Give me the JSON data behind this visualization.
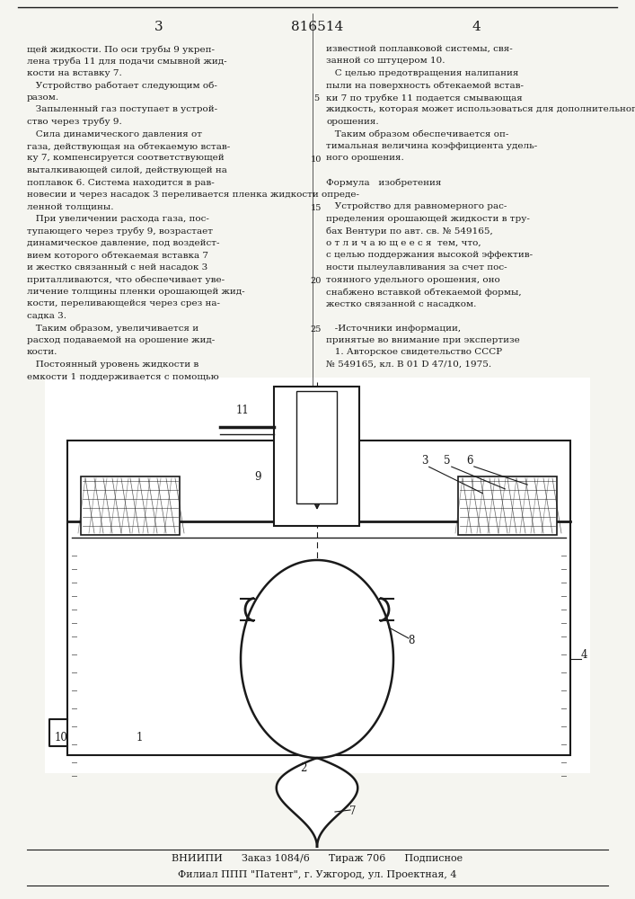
{
  "page_number_left": "3",
  "patent_number": "816514",
  "page_number_right": "4",
  "bg_color": "#f5f5f0",
  "text_color": "#1a1a1a",
  "left_column_text": [
    "щей жидкости. По оси трубы 9 укреп-",
    "лена труба 11 для подачи смывной жид-",
    "кости на вставку 7.",
    "   Устройство работает следующим об-",
    "разом.",
    "   Запыленный газ поступает в устрой-",
    "ство через трубу 9.",
    "   Сила динамического давления от",
    "газа, действующая на обтекаемую встав-",
    "ку 7, компенсируется соответствующей",
    "выталкивающей силой, действующей на",
    "поплавок 6. Система находится в рав-",
    "новесии и через насадок 3 переливается пленка жидкости опреде-",
    "ленной толщины.",
    "   При увеличении расхода газа, пос-",
    "тупающего через трубу 9, возрастает",
    "динамическое давление, под воздейст-",
    "вием которого обтекаемая вставка 7",
    "и жестко связанный с ней насадок 3",
    "приталливаются, что обеспечивает уве-",
    "личение толщины пленки орошающей жид-",
    "кости, переливающейся через срез на-",
    "садка 3.",
    "   Таким образом, увеличивается и",
    "расход подаваемой на орошение жид-",
    "кости.",
    "   Постоянный уровень жидкости в",
    "емкости 1 поддерживается с помощью"
  ],
  "right_column_text": [
    "известной поплавковой системы, свя-",
    "занной со штуцером 10.",
    "   С целью предотвращения налипания",
    "пыли на поверхность обтекаемой встав-",
    "ки 7 по трубке 11 подается смывающая",
    "жидкость, которая может использоваться для дополнительного центрального",
    "орошения.",
    "   Таким образом обеспечивается оп-",
    "тимальная величина коэффициента удель-",
    "ного орошения.",
    "",
    "Формула   изобретения",
    "",
    "   Устройство для равномерного рас-",
    "пределения орошающей жидкости в тру-",
    "бах Вентури по авт. св. № 549165,",
    "о т л и ч а ю щ е е с я  тем, что,",
    "с целью поддержания высокой эффектив-",
    "ности пылеулавливания за счет пос-",
    "тоянного удельного орошения, оно",
    "снабжено вставкой обтекаемой формы,",
    "жестко связанной с насадком.",
    "",
    "   -Источники информации,",
    "принятые во внимание при экспертизе",
    "   1. Авторское свидетельство СССР",
    "№ 549165, кл. В 01 D 47/10, 1975."
  ],
  "line_numbers": [
    5,
    10,
    15,
    20,
    25
  ],
  "footer_line1": "ВНИИПИ      Заказ 1084/6      Тираж 706      Подписное",
  "footer_line2": "Филиал ППП \"Патент\", г. Ужгород, ул. Проектная, 4"
}
